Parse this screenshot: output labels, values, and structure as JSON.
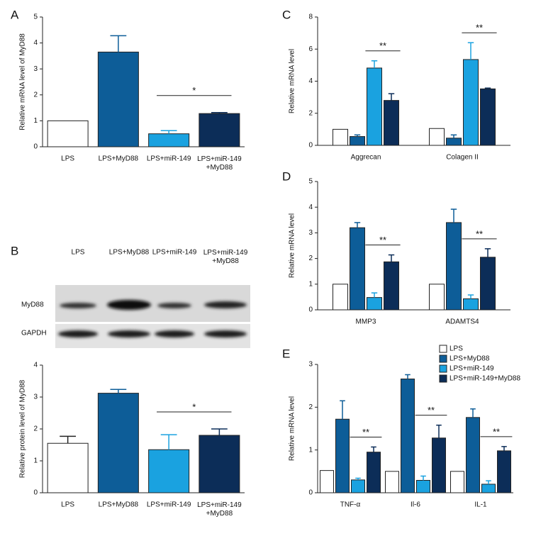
{
  "chart_data": [
    {
      "type": "bar",
      "label": "A",
      "ylabel": "Relative mRNA level of MyD88",
      "categories": [
        "LPS",
        "LPS+MyD88",
        "LPS+miR-149",
        "LPS+miR-149\n+MyD88"
      ],
      "values": [
        1.0,
        3.65,
        0.5,
        1.28
      ],
      "errors": [
        null,
        0.63,
        0.12,
        0.04
      ],
      "colors": [
        "#ffffff",
        "#0d5d98",
        "#1aa2e0",
        "#0c2d58"
      ],
      "ylim": [
        0,
        5
      ],
      "yticks": [
        0,
        1,
        2,
        3,
        4,
        5
      ],
      "annotations": [
        {
          "text": "*",
          "from": 2,
          "to": 3
        }
      ]
    },
    {
      "type": "bar",
      "label": "B",
      "ylabel": "Relative protein level of MyD88",
      "blot_rows": [
        "MyD88",
        "GAPDH"
      ],
      "categories": [
        "LPS",
        "LPS+MyD88",
        "LPS+miR-149",
        "LPS+miR-149\n+MyD88"
      ],
      "values": [
        1.55,
        3.12,
        1.35,
        1.8
      ],
      "errors": [
        0.22,
        0.12,
        0.47,
        0.2
      ],
      "colors": [
        "#ffffff",
        "#0d5d98",
        "#1aa2e0",
        "#0c2d58"
      ],
      "ylim": [
        0,
        4
      ],
      "yticks": [
        0,
        1,
        2,
        3,
        4
      ],
      "annotations": [
        {
          "text": "*",
          "from": 2,
          "to": 3
        }
      ]
    },
    {
      "type": "bar",
      "label": "C",
      "ylabel": "Relative mRNA level",
      "categories": [
        "Aggrecan",
        "Colagen II"
      ],
      "series": [
        {
          "color": "#ffffff",
          "values": [
            1.0,
            1.05
          ],
          "errors": [
            null,
            null
          ]
        },
        {
          "color": "#0d5d98",
          "values": [
            0.55,
            0.45
          ],
          "errors": [
            0.1,
            0.2
          ]
        },
        {
          "color": "#1aa2e0",
          "values": [
            4.82,
            5.35
          ],
          "errors": [
            0.45,
            1.05
          ]
        },
        {
          "color": "#0c2d58",
          "values": [
            2.8,
            3.52
          ],
          "errors": [
            0.42,
            0.05
          ]
        }
      ],
      "ylim": [
        0,
        8
      ],
      "yticks": [
        0,
        2,
        4,
        6,
        8
      ],
      "annotations": [
        {
          "text": "**",
          "group": 0,
          "from": 2,
          "to": 3
        },
        {
          "text": "**",
          "group": 1,
          "from": 2,
          "to": 3
        }
      ]
    },
    {
      "type": "bar",
      "label": "D",
      "ylabel": "Relative mRNA level",
      "categories": [
        "MMP3",
        "ADAMTS4"
      ],
      "series": [
        {
          "color": "#ffffff",
          "values": [
            1.0,
            1.0
          ],
          "errors": [
            null,
            null
          ]
        },
        {
          "color": "#0d5d98",
          "values": [
            3.2,
            3.4
          ],
          "errors": [
            0.2,
            0.52
          ]
        },
        {
          "color": "#1aa2e0",
          "values": [
            0.48,
            0.43
          ],
          "errors": [
            0.18,
            0.15
          ]
        },
        {
          "color": "#0c2d58",
          "values": [
            1.87,
            2.05
          ],
          "errors": [
            0.27,
            0.33
          ]
        }
      ],
      "ylim": [
        0,
        5
      ],
      "yticks": [
        0,
        1,
        2,
        3,
        4,
        5
      ],
      "annotations": [
        {
          "text": "**",
          "group": 0,
          "from": 2,
          "to": 3
        },
        {
          "text": "**",
          "group": 1,
          "from": 2,
          "to": 3
        }
      ]
    },
    {
      "type": "bar",
      "label": "E",
      "ylabel": "Relative mRNA level",
      "categories": [
        "TNF-α",
        "Il-6",
        "IL-1"
      ],
      "series": [
        {
          "name": "LPS",
          "color": "#ffffff",
          "values": [
            0.52,
            0.5,
            0.5
          ],
          "errors": [
            null,
            null,
            null
          ]
        },
        {
          "name": "LPS+MyD88",
          "color": "#0d5d98",
          "values": [
            1.72,
            2.66,
            1.76
          ],
          "errors": [
            0.43,
            0.1,
            0.2
          ]
        },
        {
          "name": "LPS+miR-149",
          "color": "#1aa2e0",
          "values": [
            0.3,
            0.29,
            0.2
          ],
          "errors": [
            0.04,
            0.1,
            0.08
          ]
        },
        {
          "name": "LPS+miR-149+MyD88",
          "color": "#0c2d58",
          "values": [
            0.95,
            1.28,
            0.98
          ],
          "errors": [
            0.12,
            0.3,
            0.1
          ]
        }
      ],
      "ylim": [
        0,
        3
      ],
      "yticks": [
        0,
        1,
        2,
        3
      ],
      "legend": "top-right",
      "annotations": [
        {
          "text": "**",
          "group": 0,
          "from": 2,
          "to": 3
        },
        {
          "text": "**",
          "group": 1,
          "from": 2,
          "to": 3
        },
        {
          "text": "**",
          "group": 2,
          "from": 2,
          "to": 3
        }
      ]
    }
  ]
}
